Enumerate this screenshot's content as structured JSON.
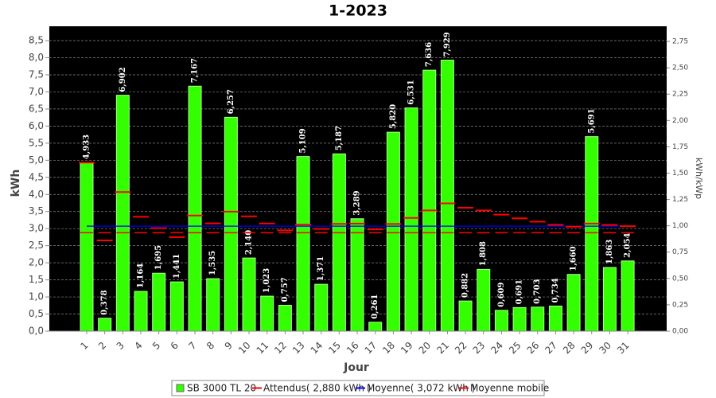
{
  "chart_data": {
    "type": "bar",
    "title": "1-2023",
    "x_label": "Jour",
    "y_label": "kWh",
    "y2_label": "kWh/kWp",
    "categories": [
      "1",
      "2",
      "3",
      "4",
      "5",
      "6",
      "7",
      "8",
      "9",
      "10",
      "11",
      "12",
      "13",
      "14",
      "15",
      "16",
      "17",
      "18",
      "19",
      "20",
      "21",
      "22",
      "23",
      "24",
      "25",
      "26",
      "27",
      "28",
      "29",
      "30",
      "31"
    ],
    "series": [
      {
        "name": "SB 3000 TL 20",
        "color": "#33ff00",
        "mark": "bar",
        "values": [
          4.933,
          0.378,
          6.902,
          1.164,
          1.695,
          1.441,
          7.167,
          1.535,
          6.257,
          2.14,
          1.023,
          0.757,
          5.109,
          1.371,
          5.187,
          3.289,
          0.261,
          5.82,
          6.531,
          7.636,
          7.929,
          0.882,
          1.808,
          0.609,
          0.691,
          0.703,
          0.734,
          1.66,
          5.691,
          1.863,
          2.054
        ],
        "value_labels": [
          "4,933",
          "0,378",
          "6,902",
          "1,164",
          "1,695",
          "1,441",
          "7,167",
          "1,535",
          "6,257",
          "2,140",
          "1,023",
          "0,757",
          "5,109",
          "1,371",
          "5,187",
          "3,289",
          "0,261",
          "5,820",
          "6,531",
          "7,636",
          "7,929",
          "0,882",
          "1,808",
          "0,609",
          "0,691",
          "0,703",
          "0,734",
          "1,660",
          "5,691",
          "1,863",
          "2,054"
        ]
      },
      {
        "name": "Attendus( 2,880 kWh )",
        "color": "#ff0000",
        "mark": "segment",
        "values": [
          2.88,
          2.88,
          2.88,
          2.88,
          2.88,
          2.88,
          2.88,
          2.88,
          2.88,
          2.88,
          2.88,
          2.88,
          2.88,
          2.88,
          2.88,
          2.88,
          2.88,
          2.88,
          2.88,
          2.88,
          2.88,
          2.88,
          2.88,
          2.88,
          2.88,
          2.88,
          2.88,
          2.88,
          2.88,
          2.88,
          2.88
        ]
      },
      {
        "name": "Moyenne( 3,072 kWh )",
        "color": "#0000ff",
        "mark": "line",
        "values": [
          3.072,
          3.072,
          3.072,
          3.072,
          3.072,
          3.072,
          3.072,
          3.072,
          3.072,
          3.072,
          3.072,
          3.072,
          3.072,
          3.072,
          3.072,
          3.072,
          3.072,
          3.072,
          3.072,
          3.072,
          3.072,
          3.072,
          3.072,
          3.072,
          3.072,
          3.072,
          3.072,
          3.072,
          3.072,
          3.072,
          3.072
        ]
      },
      {
        "name": "Moyenne mobile",
        "color": "#ff0000",
        "mark": "step",
        "values": [
          4.933,
          2.656,
          4.071,
          3.344,
          3.014,
          2.752,
          3.383,
          3.152,
          3.497,
          3.361,
          3.149,
          2.949,
          3.115,
          2.991,
          3.137,
          3.147,
          2.977,
          3.135,
          3.314,
          3.53,
          3.739,
          3.609,
          3.531,
          3.409,
          3.301,
          3.201,
          3.109,
          3.058,
          3.148,
          3.106,
          3.072
        ]
      }
    ],
    "ylim": [
      0,
      8.92
    ],
    "yticks": [
      {
        "value": 0,
        "label": "0,0"
      },
      {
        "value": 0.5,
        "label": "0,5"
      },
      {
        "value": 1,
        "label": "1,0"
      },
      {
        "value": 1.5,
        "label": "1,5"
      },
      {
        "value": 2,
        "label": "2,0"
      },
      {
        "value": 2.5,
        "label": "2,5"
      },
      {
        "value": 3,
        "label": "3,0"
      },
      {
        "value": 3.5,
        "label": "3,5"
      },
      {
        "value": 4,
        "label": "4,0"
      },
      {
        "value": 4.5,
        "label": "4,5"
      },
      {
        "value": 5,
        "label": "5,0"
      },
      {
        "value": 5.5,
        "label": "5,5"
      },
      {
        "value": 6,
        "label": "6,0"
      },
      {
        "value": 6.5,
        "label": "6,5"
      },
      {
        "value": 7,
        "label": "7,0"
      },
      {
        "value": 7.5,
        "label": "7,5"
      },
      {
        "value": 8,
        "label": "8,0"
      },
      {
        "value": 8.5,
        "label": "8,5"
      }
    ],
    "y2lim": [
      0,
      2.894
    ],
    "y2ticks": [
      {
        "value": 0,
        "label": "0,00"
      },
      {
        "value": 0.25,
        "label": "0,25"
      },
      {
        "value": 0.5,
        "label": "0,50"
      },
      {
        "value": 0.75,
        "label": "0,75"
      },
      {
        "value": 1,
        "label": "1,00"
      },
      {
        "value": 1.25,
        "label": "1,25"
      },
      {
        "value": 1.5,
        "label": "1,50"
      },
      {
        "value": 1.75,
        "label": "1,75"
      },
      {
        "value": 2,
        "label": "2,00"
      },
      {
        "value": 2.25,
        "label": "2,25"
      },
      {
        "value": 2.5,
        "label": "2,50"
      },
      {
        "value": 2.75,
        "label": "2,75"
      }
    ],
    "grid": true,
    "legend": "bottom"
  }
}
